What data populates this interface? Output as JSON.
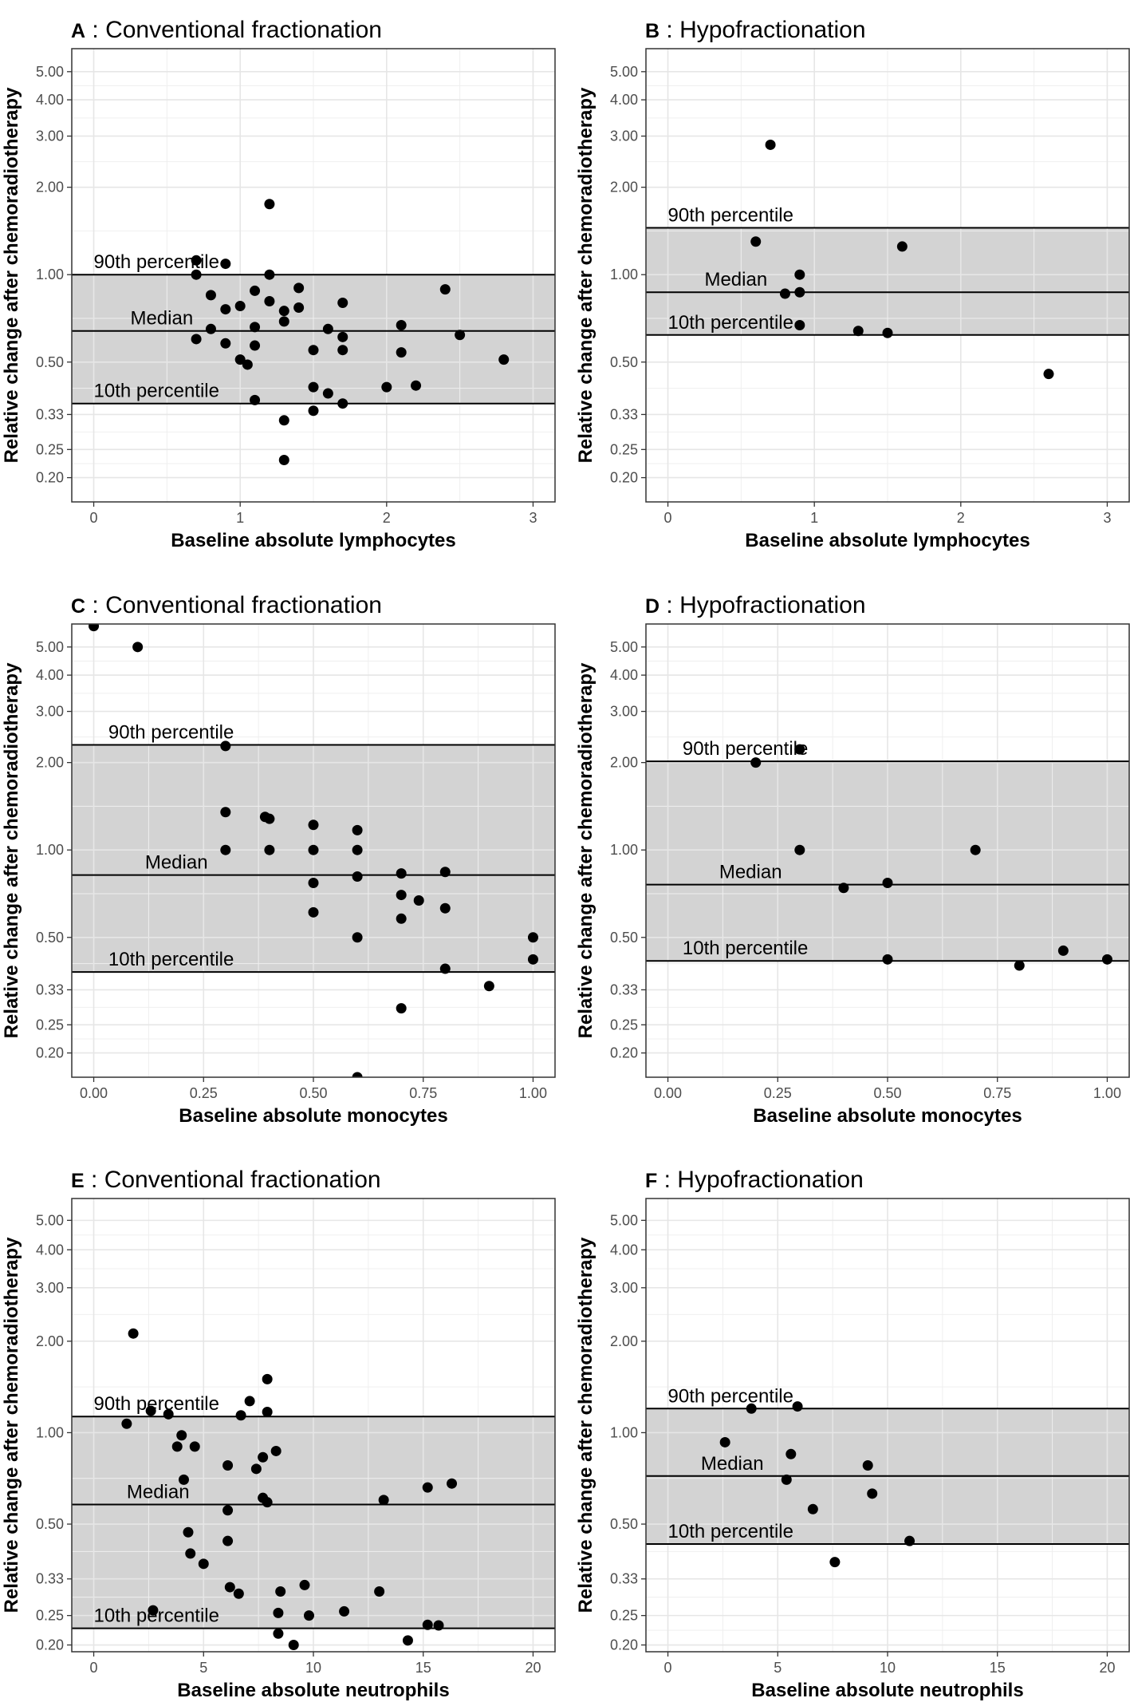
{
  "chart_data": [
    {
      "type": "scatter",
      "panel_letter": "A",
      "title": "Conventional fractionation",
      "xlabel": "Baseline absolute lymphocytes",
      "ylabel": "Relative change after chemoradiotherapy",
      "xlim": [
        -0.15,
        3.15
      ],
      "ylim_log": [
        0.165,
        6.0
      ],
      "x_ticks": [
        "0",
        "1",
        "2",
        "3"
      ],
      "y_ticks": [
        "0.20",
        "0.25",
        "0.33",
        "0.50",
        "1.00",
        "2.00",
        "3.00",
        "4.00",
        "5.00"
      ],
      "reference_lines": {
        "p90": 1.0,
        "median": 0.64,
        "p10": 0.36
      },
      "reference_labels": {
        "p90": "90th percentile",
        "median": "Median",
        "p10": "10th percentile"
      },
      "label_x": [
        0.0,
        0.25,
        0.0
      ],
      "points": [
        [
          0.7,
          1.12
        ],
        [
          0.9,
          1.09
        ],
        [
          0.7,
          1.0
        ],
        [
          1.2,
          1.75
        ],
        [
          1.2,
          1.0
        ],
        [
          0.8,
          0.85
        ],
        [
          0.9,
          0.76
        ],
        [
          1.0,
          0.78
        ],
        [
          1.1,
          0.88
        ],
        [
          1.2,
          0.81
        ],
        [
          1.3,
          0.75
        ],
        [
          1.4,
          0.9
        ],
        [
          1.4,
          0.77
        ],
        [
          1.7,
          0.8
        ],
        [
          2.4,
          0.89
        ],
        [
          1.3,
          0.69
        ],
        [
          0.8,
          0.65
        ],
        [
          1.1,
          0.66
        ],
        [
          1.6,
          0.65
        ],
        [
          1.7,
          0.61
        ],
        [
          2.1,
          0.67
        ],
        [
          2.5,
          0.62
        ],
        [
          0.7,
          0.6
        ],
        [
          0.9,
          0.58
        ],
        [
          1.1,
          0.57
        ],
        [
          1.5,
          0.55
        ],
        [
          1.7,
          0.55
        ],
        [
          2.1,
          0.54
        ],
        [
          2.8,
          0.51
        ],
        [
          1.0,
          0.51
        ],
        [
          1.05,
          0.49
        ],
        [
          1.5,
          0.41
        ],
        [
          1.6,
          0.39
        ],
        [
          2.0,
          0.41
        ],
        [
          2.2,
          0.415
        ],
        [
          1.1,
          0.37
        ],
        [
          1.7,
          0.36
        ],
        [
          1.5,
          0.34
        ],
        [
          1.3,
          0.315
        ],
        [
          1.3,
          0.23
        ]
      ]
    },
    {
      "type": "scatter",
      "panel_letter": "B",
      "title": "Hypofractionation",
      "xlabel": "Baseline absolute lymphocytes",
      "ylabel": "Relative change after chemoradiotherapy",
      "xlim": [
        -0.15,
        3.15
      ],
      "ylim_log": [
        0.165,
        6.0
      ],
      "x_ticks": [
        "0",
        "1",
        "2",
        "3"
      ],
      "y_ticks": [
        "0.20",
        "0.25",
        "0.33",
        "0.50",
        "1.00",
        "2.00",
        "3.00",
        "4.00",
        "5.00"
      ],
      "reference_lines": {
        "p90": 1.45,
        "median": 0.87,
        "p10": 0.62
      },
      "reference_labels": {
        "p90": "90th percentile",
        "median": "Median",
        "p10": "10th percentile"
      },
      "label_x": [
        0.0,
        0.25,
        0.0
      ],
      "points": [
        [
          0.7,
          2.8
        ],
        [
          0.6,
          1.3
        ],
        [
          1.6,
          1.25
        ],
        [
          0.9,
          1.0
        ],
        [
          0.8,
          0.86
        ],
        [
          0.9,
          0.87
        ],
        [
          0.9,
          0.67
        ],
        [
          1.3,
          0.64
        ],
        [
          1.5,
          0.63
        ],
        [
          2.6,
          0.455
        ]
      ]
    },
    {
      "type": "scatter",
      "panel_letter": "C",
      "title": "Conventional fractionation",
      "xlabel": "Baseline absolute monocytes",
      "ylabel": "Relative change after chemoradiotherapy",
      "xlim": [
        -0.05,
        1.05
      ],
      "ylim_log": [
        0.165,
        6.0
      ],
      "x_ticks": [
        "0.00",
        "0.25",
        "0.50",
        "0.75",
        "1.00"
      ],
      "y_ticks": [
        "0.20",
        "0.25",
        "0.33",
        "0.50",
        "1.00",
        "2.00",
        "3.00",
        "4.00",
        "5.00"
      ],
      "reference_lines": {
        "p90": 2.3,
        "median": 0.82,
        "p10": 0.38
      },
      "reference_labels": {
        "p90": "90th percentile",
        "median": "Median",
        "p10": "10th percentile"
      },
      "label_x": [
        0.0333,
        0.1167,
        0.0333
      ],
      "points": [
        [
          0.0,
          5.9
        ],
        [
          0.1,
          5.0
        ],
        [
          0.3,
          2.28
        ],
        [
          0.3,
          1.35
        ],
        [
          0.39,
          1.3
        ],
        [
          0.4,
          1.28
        ],
        [
          0.5,
          1.22
        ],
        [
          0.6,
          1.17
        ],
        [
          0.3,
          1.0
        ],
        [
          0.4,
          1.0
        ],
        [
          0.5,
          1.0
        ],
        [
          0.6,
          1.0
        ],
        [
          0.6,
          0.81
        ],
        [
          0.7,
          0.83
        ],
        [
          0.8,
          0.84
        ],
        [
          0.5,
          0.77
        ],
        [
          0.7,
          0.7
        ],
        [
          0.74,
          0.67
        ],
        [
          0.8,
          0.63
        ],
        [
          0.5,
          0.61
        ],
        [
          0.7,
          0.58
        ],
        [
          0.6,
          0.5
        ],
        [
          1.0,
          0.5
        ],
        [
          1.0,
          0.42
        ],
        [
          0.8,
          0.39
        ],
        [
          0.9,
          0.34
        ],
        [
          0.7,
          0.285
        ],
        [
          0.6,
          0.165
        ]
      ]
    },
    {
      "type": "scatter",
      "panel_letter": "D",
      "title": "Hypofractionation",
      "xlabel": "Baseline absolute monocytes",
      "ylabel": "Relative change after chemoradiotherapy",
      "xlim": [
        -0.05,
        1.05
      ],
      "ylim_log": [
        0.165,
        6.0
      ],
      "x_ticks": [
        "0.00",
        "0.25",
        "0.50",
        "0.75",
        "1.00"
      ],
      "y_ticks": [
        "0.20",
        "0.25",
        "0.33",
        "0.50",
        "1.00",
        "2.00",
        "3.00",
        "4.00",
        "5.00"
      ],
      "reference_lines": {
        "p90": 2.02,
        "median": 0.76,
        "p10": 0.415
      },
      "reference_labels": {
        "p90": "90th percentile",
        "median": "Median",
        "p10": "10th percentile"
      },
      "label_x": [
        0.0333,
        0.1167,
        0.0333
      ],
      "points": [
        [
          0.3,
          2.22
        ],
        [
          0.2,
          2.0
        ],
        [
          0.3,
          1.0
        ],
        [
          0.7,
          1.0
        ],
        [
          0.5,
          0.77
        ],
        [
          0.4,
          0.74
        ],
        [
          0.9,
          0.45
        ],
        [
          1.0,
          0.42
        ],
        [
          0.5,
          0.42
        ],
        [
          0.8,
          0.4
        ]
      ]
    },
    {
      "type": "scatter",
      "panel_letter": "E",
      "title": "Conventional fractionation",
      "xlabel": "Baseline absolute neutrophils",
      "ylabel": "Relative change after chemoradiotherapy",
      "xlim": [
        -1.0,
        21.0
      ],
      "ylim_log": [
        0.19,
        5.9
      ],
      "x_ticks": [
        "0",
        "5",
        "10",
        "15",
        "20"
      ],
      "y_ticks": [
        "0.20",
        "0.25",
        "0.33",
        "0.50",
        "1.00",
        "2.00",
        "3.00",
        "4.00",
        "5.00"
      ],
      "reference_lines": {
        "p90": 1.13,
        "median": 0.58,
        "p10": 0.227
      },
      "reference_labels": {
        "p90": "90th percentile",
        "median": "Median",
        "p10": "10th percentile"
      },
      "label_x": [
        0.0,
        1.5,
        0.0
      ],
      "points": [
        [
          1.8,
          2.12
        ],
        [
          7.9,
          1.5
        ],
        [
          7.1,
          1.27
        ],
        [
          7.9,
          1.17
        ],
        [
          2.6,
          1.18
        ],
        [
          3.4,
          1.15
        ],
        [
          6.7,
          1.14
        ],
        [
          1.5,
          1.07
        ],
        [
          4.0,
          0.98
        ],
        [
          3.8,
          0.9
        ],
        [
          4.6,
          0.9
        ],
        [
          8.3,
          0.87
        ],
        [
          7.7,
          0.83
        ],
        [
          6.1,
          0.78
        ],
        [
          7.4,
          0.76
        ],
        [
          4.1,
          0.7
        ],
        [
          15.2,
          0.66
        ],
        [
          16.3,
          0.68
        ],
        [
          7.7,
          0.61
        ],
        [
          13.2,
          0.6
        ],
        [
          7.9,
          0.59
        ],
        [
          6.1,
          0.555
        ],
        [
          4.3,
          0.47
        ],
        [
          6.1,
          0.44
        ],
        [
          4.4,
          0.4
        ],
        [
          5.0,
          0.37
        ],
        [
          9.6,
          0.315
        ],
        [
          6.2,
          0.31
        ],
        [
          8.5,
          0.3
        ],
        [
          13.0,
          0.3
        ],
        [
          6.6,
          0.295
        ],
        [
          2.7,
          0.26
        ],
        [
          8.4,
          0.255
        ],
        [
          9.8,
          0.25
        ],
        [
          11.4,
          0.258
        ],
        [
          15.2,
          0.233
        ],
        [
          15.7,
          0.232
        ],
        [
          8.4,
          0.218
        ],
        [
          14.3,
          0.207
        ],
        [
          9.1,
          0.2
        ]
      ]
    },
    {
      "type": "scatter",
      "panel_letter": "F",
      "title": "Hypofractionation",
      "xlabel": "Baseline absolute neutrophils",
      "ylabel": "Relative change after chemoradiotherapy",
      "xlim": [
        -1.0,
        21.0
      ],
      "ylim_log": [
        0.19,
        5.9
      ],
      "x_ticks": [
        "0",
        "5",
        "10",
        "15",
        "20"
      ],
      "y_ticks": [
        "0.20",
        "0.25",
        "0.33",
        "0.50",
        "1.00",
        "2.00",
        "3.00",
        "4.00",
        "5.00"
      ],
      "reference_lines": {
        "p90": 1.2,
        "median": 0.72,
        "p10": 0.43
      },
      "reference_labels": {
        "p90": "90th percentile",
        "median": "Median",
        "p10": "10th percentile"
      },
      "label_x": [
        0.0,
        1.5,
        0.0
      ],
      "points": [
        [
          3.8,
          1.2
        ],
        [
          5.9,
          1.22
        ],
        [
          2.6,
          0.93
        ],
        [
          5.6,
          0.85
        ],
        [
          9.1,
          0.78
        ],
        [
          5.4,
          0.7
        ],
        [
          9.3,
          0.63
        ],
        [
          6.6,
          0.56
        ],
        [
          11.0,
          0.44
        ],
        [
          7.6,
          0.375
        ]
      ]
    }
  ]
}
